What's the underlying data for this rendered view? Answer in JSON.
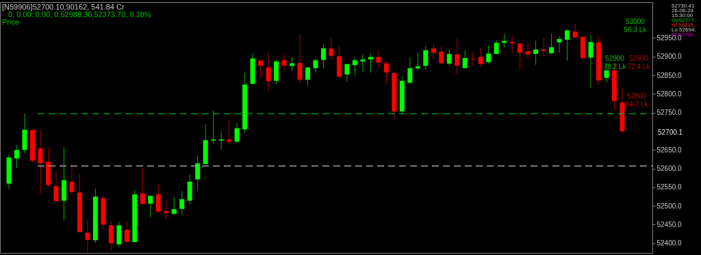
{
  "chart_data": {
    "type": "candlestick",
    "categories": [
      null,
      null,
      null,
      null,
      null,
      null,
      null,
      null,
      null,
      null,
      null,
      null,
      null,
      null,
      null,
      null,
      null,
      null,
      null,
      null,
      null,
      null,
      null,
      null,
      null,
      null,
      null,
      null,
      null,
      null,
      null,
      null,
      null,
      null,
      null,
      null,
      null,
      null,
      null,
      null,
      null,
      null,
      null,
      null,
      null,
      null,
      null,
      null,
      null,
      null,
      null,
      null,
      null,
      null,
      null,
      null,
      null,
      null,
      null,
      null,
      null,
      null,
      null,
      null,
      null,
      null,
      null,
      null,
      null,
      null,
      null,
      null,
      null,
      null,
      null,
      null,
      null,
      null,
      null
    ],
    "ohlc": [
      [
        52560,
        52637,
        52545,
        52630
      ],
      [
        52627,
        52663,
        52601,
        52650
      ],
      [
        52650,
        52748,
        52641,
        52704
      ],
      [
        52703,
        52705,
        52618,
        52621
      ],
      [
        52654,
        52704,
        52533,
        52614
      ],
      [
        52618,
        52656,
        52551,
        52556
      ],
      [
        52553,
        52593,
        52511,
        52513
      ],
      [
        52514,
        52657,
        52461,
        52569
      ],
      [
        52565,
        52615,
        52530,
        52537
      ],
      [
        52536,
        52586,
        52430,
        52430
      ],
      [
        52428,
        52464,
        52376,
        52409
      ],
      [
        52408,
        52546,
        52401,
        52525
      ],
      [
        52521,
        52530,
        52438,
        52450
      ],
      [
        52448,
        52459,
        52380,
        52400
      ],
      [
        52397,
        52458,
        52389,
        52448
      ],
      [
        52436,
        52459,
        52398,
        52404
      ],
      [
        52403,
        52542,
        52403,
        52531
      ],
      [
        52533,
        52601,
        52505,
        52505
      ],
      [
        52506,
        52527,
        52469,
        52527
      ],
      [
        52531,
        52560,
        52481,
        52485
      ],
      [
        52486,
        52514,
        52465,
        52481
      ],
      [
        52479,
        52525,
        52476,
        52491
      ],
      [
        52492,
        52540,
        52476,
        52518
      ],
      [
        52514,
        52584,
        52503,
        52565
      ],
      [
        52571,
        52635,
        52542,
        52614
      ],
      [
        52612,
        52719,
        52612,
        52676
      ],
      [
        52675,
        52755,
        52666,
        52678
      ],
      [
        52675,
        52699,
        52651,
        52678
      ],
      [
        52678,
        52730,
        52670,
        52672
      ],
      [
        52672,
        52722,
        52668,
        52708
      ],
      [
        52705,
        52857,
        52695,
        52825
      ],
      [
        52827,
        52908,
        52826,
        52895
      ],
      [
        52889,
        52892,
        52844,
        52876
      ],
      [
        52871,
        52910,
        52807,
        52834
      ],
      [
        52835,
        52890,
        52825,
        52887
      ],
      [
        52890,
        52906,
        52864,
        52876
      ],
      [
        52875,
        52899,
        52862,
        52882
      ],
      [
        52883,
        52959,
        52830,
        52838
      ],
      [
        52838,
        52871,
        52822,
        52871
      ],
      [
        52869,
        52895,
        52857,
        52890
      ],
      [
        52891,
        52933,
        52868,
        52922
      ],
      [
        52921,
        52951,
        52891,
        52902
      ],
      [
        52901,
        52928,
        52846,
        52846
      ],
      [
        52852,
        52880,
        52832,
        52880
      ],
      [
        52877,
        52898,
        52849,
        52890
      ],
      [
        52887,
        52906,
        52860,
        52892
      ],
      [
        52892,
        52908,
        52857,
        52899
      ],
      [
        52899,
        52917,
        52868,
        52884
      ],
      [
        52882,
        52889,
        52827,
        52858
      ],
      [
        52856,
        52858,
        52731,
        52753
      ],
      [
        52753,
        52847,
        52747,
        52835
      ],
      [
        52830,
        52898,
        52826,
        52869
      ],
      [
        52868,
        52913,
        52862,
        52874
      ],
      [
        52875,
        52928,
        52865,
        52917
      ],
      [
        52922,
        52935,
        52893,
        52910
      ],
      [
        52913,
        52926,
        52882,
        52882
      ],
      [
        52881,
        52919,
        52875,
        52907
      ],
      [
        52906,
        52948,
        52852,
        52876
      ],
      [
        52869,
        52917,
        52869,
        52896
      ],
      [
        52894,
        52912,
        52875,
        52893
      ],
      [
        52899,
        52923,
        52871,
        52880
      ],
      [
        52885,
        52929,
        52882,
        52908
      ],
      [
        52907,
        52943,
        52907,
        52937
      ],
      [
        52937,
        52961,
        52925,
        52942
      ],
      [
        52939,
        52956,
        52908,
        52936
      ],
      [
        52935,
        52935,
        52863,
        52910
      ],
      [
        52914,
        52935,
        52895,
        52906
      ],
      [
        52907,
        52943,
        52878,
        52919
      ],
      [
        52919,
        52951,
        52899,
        52915
      ],
      [
        52909,
        52961,
        52906,
        52925
      ],
      [
        52938,
        52954,
        52910,
        52947
      ],
      [
        52945,
        52974,
        52889,
        52970
      ],
      [
        52967,
        52989,
        52951,
        52951
      ],
      [
        52953,
        52953,
        52892,
        52896
      ],
      [
        52897,
        52957,
        52816,
        52939
      ],
      [
        52938,
        52954,
        52825,
        52836
      ],
      [
        52843,
        52877,
        52832,
        52863
      ],
      [
        52863,
        52881,
        52758,
        52781
      ],
      [
        52777,
        52815,
        52694,
        52700
      ]
    ],
    "colors": [
      "#00ff00",
      "#00ff00",
      "#00ff00",
      "#ff0000",
      "#ff0000",
      "#ff0000",
      "#ff0000",
      "#00ff00",
      "#ff0000",
      "#ff0000",
      "#ff0000",
      "#00ff00",
      "#ff0000",
      "#ff0000",
      "#00ff00",
      "#ff0000",
      "#00ff00",
      "#ff0000",
      "#00ff00",
      "#ff0000",
      "#ff0000",
      "#00ff00",
      "#00ff00",
      "#00ff00",
      "#00ff00",
      "#00ff00",
      "#00ff00",
      "#00ff00",
      "#ff0000",
      "#00ff00",
      "#00ff00",
      "#00ff00",
      "#ff0000",
      "#ff0000",
      "#00ff00",
      "#ff0000",
      "#00ff00",
      "#ff0000",
      "#00ff00",
      "#00ff00",
      "#00ff00",
      "#ff0000",
      "#ff0000",
      "#00ff00",
      "#00ff00",
      "#00ff00",
      "#00ff00",
      "#ff0000",
      "#ff0000",
      "#ff0000",
      "#00ff00",
      "#00ff00",
      "#00ff00",
      "#00ff00",
      "#ff0000",
      "#ff0000",
      "#00ff00",
      "#ff0000",
      "#00ff00",
      "#ff0000",
      "#ff0000",
      "#00ff00",
      "#00ff00",
      "#00ff00",
      "#ff0000",
      "#ff0000",
      "#ff0000",
      "#00ff00",
      "#ff0000",
      "#00ff00",
      "#00ff00",
      "#00ff00",
      "#ff0000",
      "#ff0000",
      "#00ff00",
      "#ff0000",
      "#00ff00",
      "#ff0000",
      "#ff0000"
    ],
    "ylim": [
      52374,
      53046
    ],
    "yticks": [
      {
        "value": 52400,
        "label": "52400.0"
      },
      {
        "value": 52450,
        "label": "52450.0"
      },
      {
        "value": 52500,
        "label": "52500.0"
      },
      {
        "value": 52550,
        "label": "52550.0"
      },
      {
        "value": 52600,
        "label": "52600.0"
      },
      {
        "value": 52650,
        "label": "52650.0"
      },
      {
        "value": 52750,
        "label": "52750.0"
      },
      {
        "value": 52800,
        "label": "52800.0"
      },
      {
        "value": 52850,
        "label": "52850.0"
      },
      {
        "value": 52900,
        "label": "52900.0"
      },
      {
        "value": 52950,
        "label": "52950.0"
      }
    ],
    "ref_lines": [
      {
        "axis": "y",
        "value": 52747,
        "color": "#00b000",
        "line_style": "dashed"
      },
      {
        "axis": "y",
        "value": 52607,
        "color": "#a0a0a0",
        "line_style": "dashed"
      }
    ],
    "annotations": [
      "[N59906]52700.10,90162,  541.84 Cr",
      "0,  0.00:  0.00,  0,52988.30,52373.70, 0.18%",
      "Price",
      "52730.41",
      "26-06-24",
      "15:30:00",
      "Op52777.",
      "Hi 52815.",
      "Lo 52694.",
      "Cl 52700.",
      "53000\n56.3 Lk",
      "52900\n78.2 Lk",
      "52900\n72.4 Lk",
      "52800\n64.7 Lk",
      "52700.1"
    ],
    "tick_labels": "y",
    "grid": false
  }
}
